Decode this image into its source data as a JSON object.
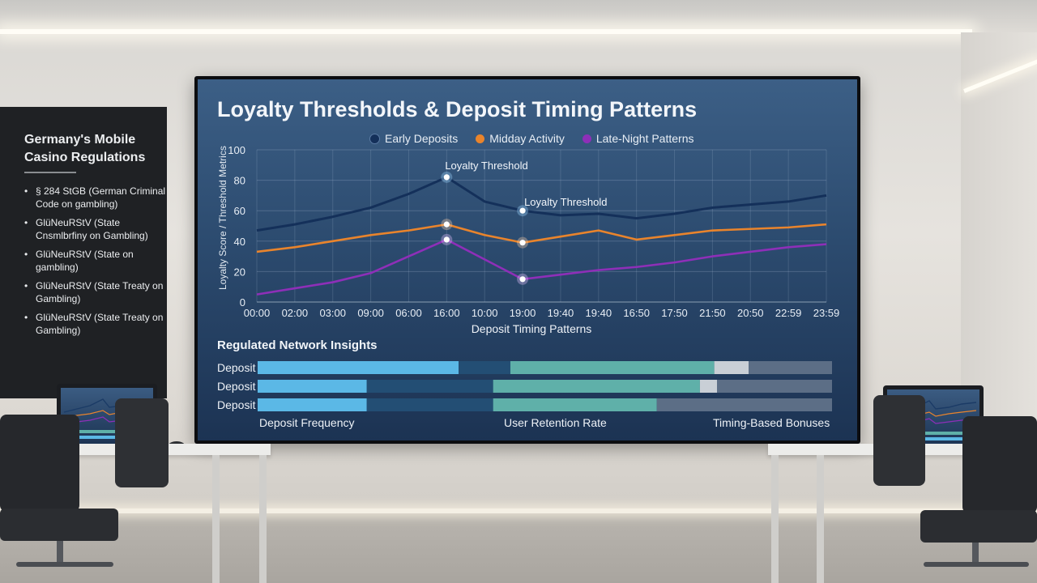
{
  "left_panel": {
    "title": "Germany's Mobile Casino Regulations",
    "items": [
      "§ 284 StGB (German Criminal Code on gambling)",
      "GlüNeuRStV (State Cnsmlbrfiny on Gambling)",
      "GlüNeuRStV (State on gambling)",
      "GlüNeuRStV (State Treaty on Gambling)",
      "GlüNeuRStV (State Treaty on Gambling)"
    ]
  },
  "screen": {
    "title": "Loyalty Thresholds & Deposit Timing Patterns",
    "insights_title": "Regulated Network Insights",
    "bar_labels": [
      "Deposit",
      "Deposit",
      "Deposit"
    ],
    "bottom_labels": [
      "Deposit Frequency",
      "User Retention Rate",
      "Timing-Based Bonuses"
    ]
  },
  "colors": {
    "early": "#14305a",
    "midday": "#e9842c",
    "late": "#8e2fb8",
    "bar_light_blue": "#5bb8e6",
    "bar_dark_blue": "#234e74",
    "bar_teal": "#5fb0a9",
    "bar_light_gray": "#c9cfd6",
    "bar_slate": "#5c6e86"
  },
  "chart_data": {
    "type": "line",
    "title": "Loyalty Thresholds & Deposit Timing Patterns",
    "xlabel": "Deposit Timing Patterns",
    "ylabel": "Loyalty Score / Threshold Metrics",
    "ylim": [
      0,
      100
    ],
    "yticks": [
      0,
      20,
      40,
      60,
      80,
      100
    ],
    "grid": true,
    "legend_position": "top",
    "x": [
      "00:00",
      "02:00",
      "03:00",
      "09:00",
      "06:00",
      "16:00",
      "10:00",
      "19:00",
      "19:40",
      "19:40",
      "16:50",
      "17:50",
      "21:50",
      "20:50",
      "22:59",
      "23:59"
    ],
    "series": [
      {
        "name": "Early Deposits",
        "values": [
          47,
          51,
          56,
          62,
          71,
          82,
          66,
          60,
          57,
          58,
          55,
          58,
          62,
          64,
          66,
          70
        ]
      },
      {
        "name": "Midday Activity",
        "values": [
          33,
          36,
          40,
          44,
          47,
          51,
          44,
          39,
          43,
          47,
          41,
          44,
          47,
          48,
          49,
          51
        ]
      },
      {
        "name": "Late-Night Patterns",
        "values": [
          5,
          9,
          13,
          19,
          30,
          41,
          28,
          15,
          18,
          21,
          23,
          26,
          30,
          33,
          36,
          38
        ]
      }
    ],
    "annotations": [
      {
        "text": "Loyalty Threshold",
        "x": "16:00",
        "y": 82
      },
      {
        "text": "Loyalty Threshold",
        "x": "19:00",
        "y": 60
      }
    ]
  },
  "bars": [
    [
      {
        "value": 35,
        "color": "bar_light_blue"
      },
      {
        "value": 9,
        "color": "bar_dark_blue"
      },
      {
        "value": 35.5,
        "color": "bar_teal"
      },
      {
        "value": 6,
        "color": "bar_light_gray"
      },
      {
        "value": 14.5,
        "color": "bar_slate"
      }
    ],
    [
      {
        "value": 19,
        "color": "bar_light_blue"
      },
      {
        "value": 22,
        "color": "bar_dark_blue"
      },
      {
        "value": 36,
        "color": "bar_teal"
      },
      {
        "value": 3,
        "color": "bar_light_gray"
      },
      {
        "value": 20,
        "color": "bar_slate"
      }
    ],
    [
      {
        "value": 19,
        "color": "bar_light_blue"
      },
      {
        "value": 22,
        "color": "bar_dark_blue"
      },
      {
        "value": 28.5,
        "color": "bar_teal"
      },
      {
        "value": 30.5,
        "color": "bar_slate"
      }
    ]
  ]
}
